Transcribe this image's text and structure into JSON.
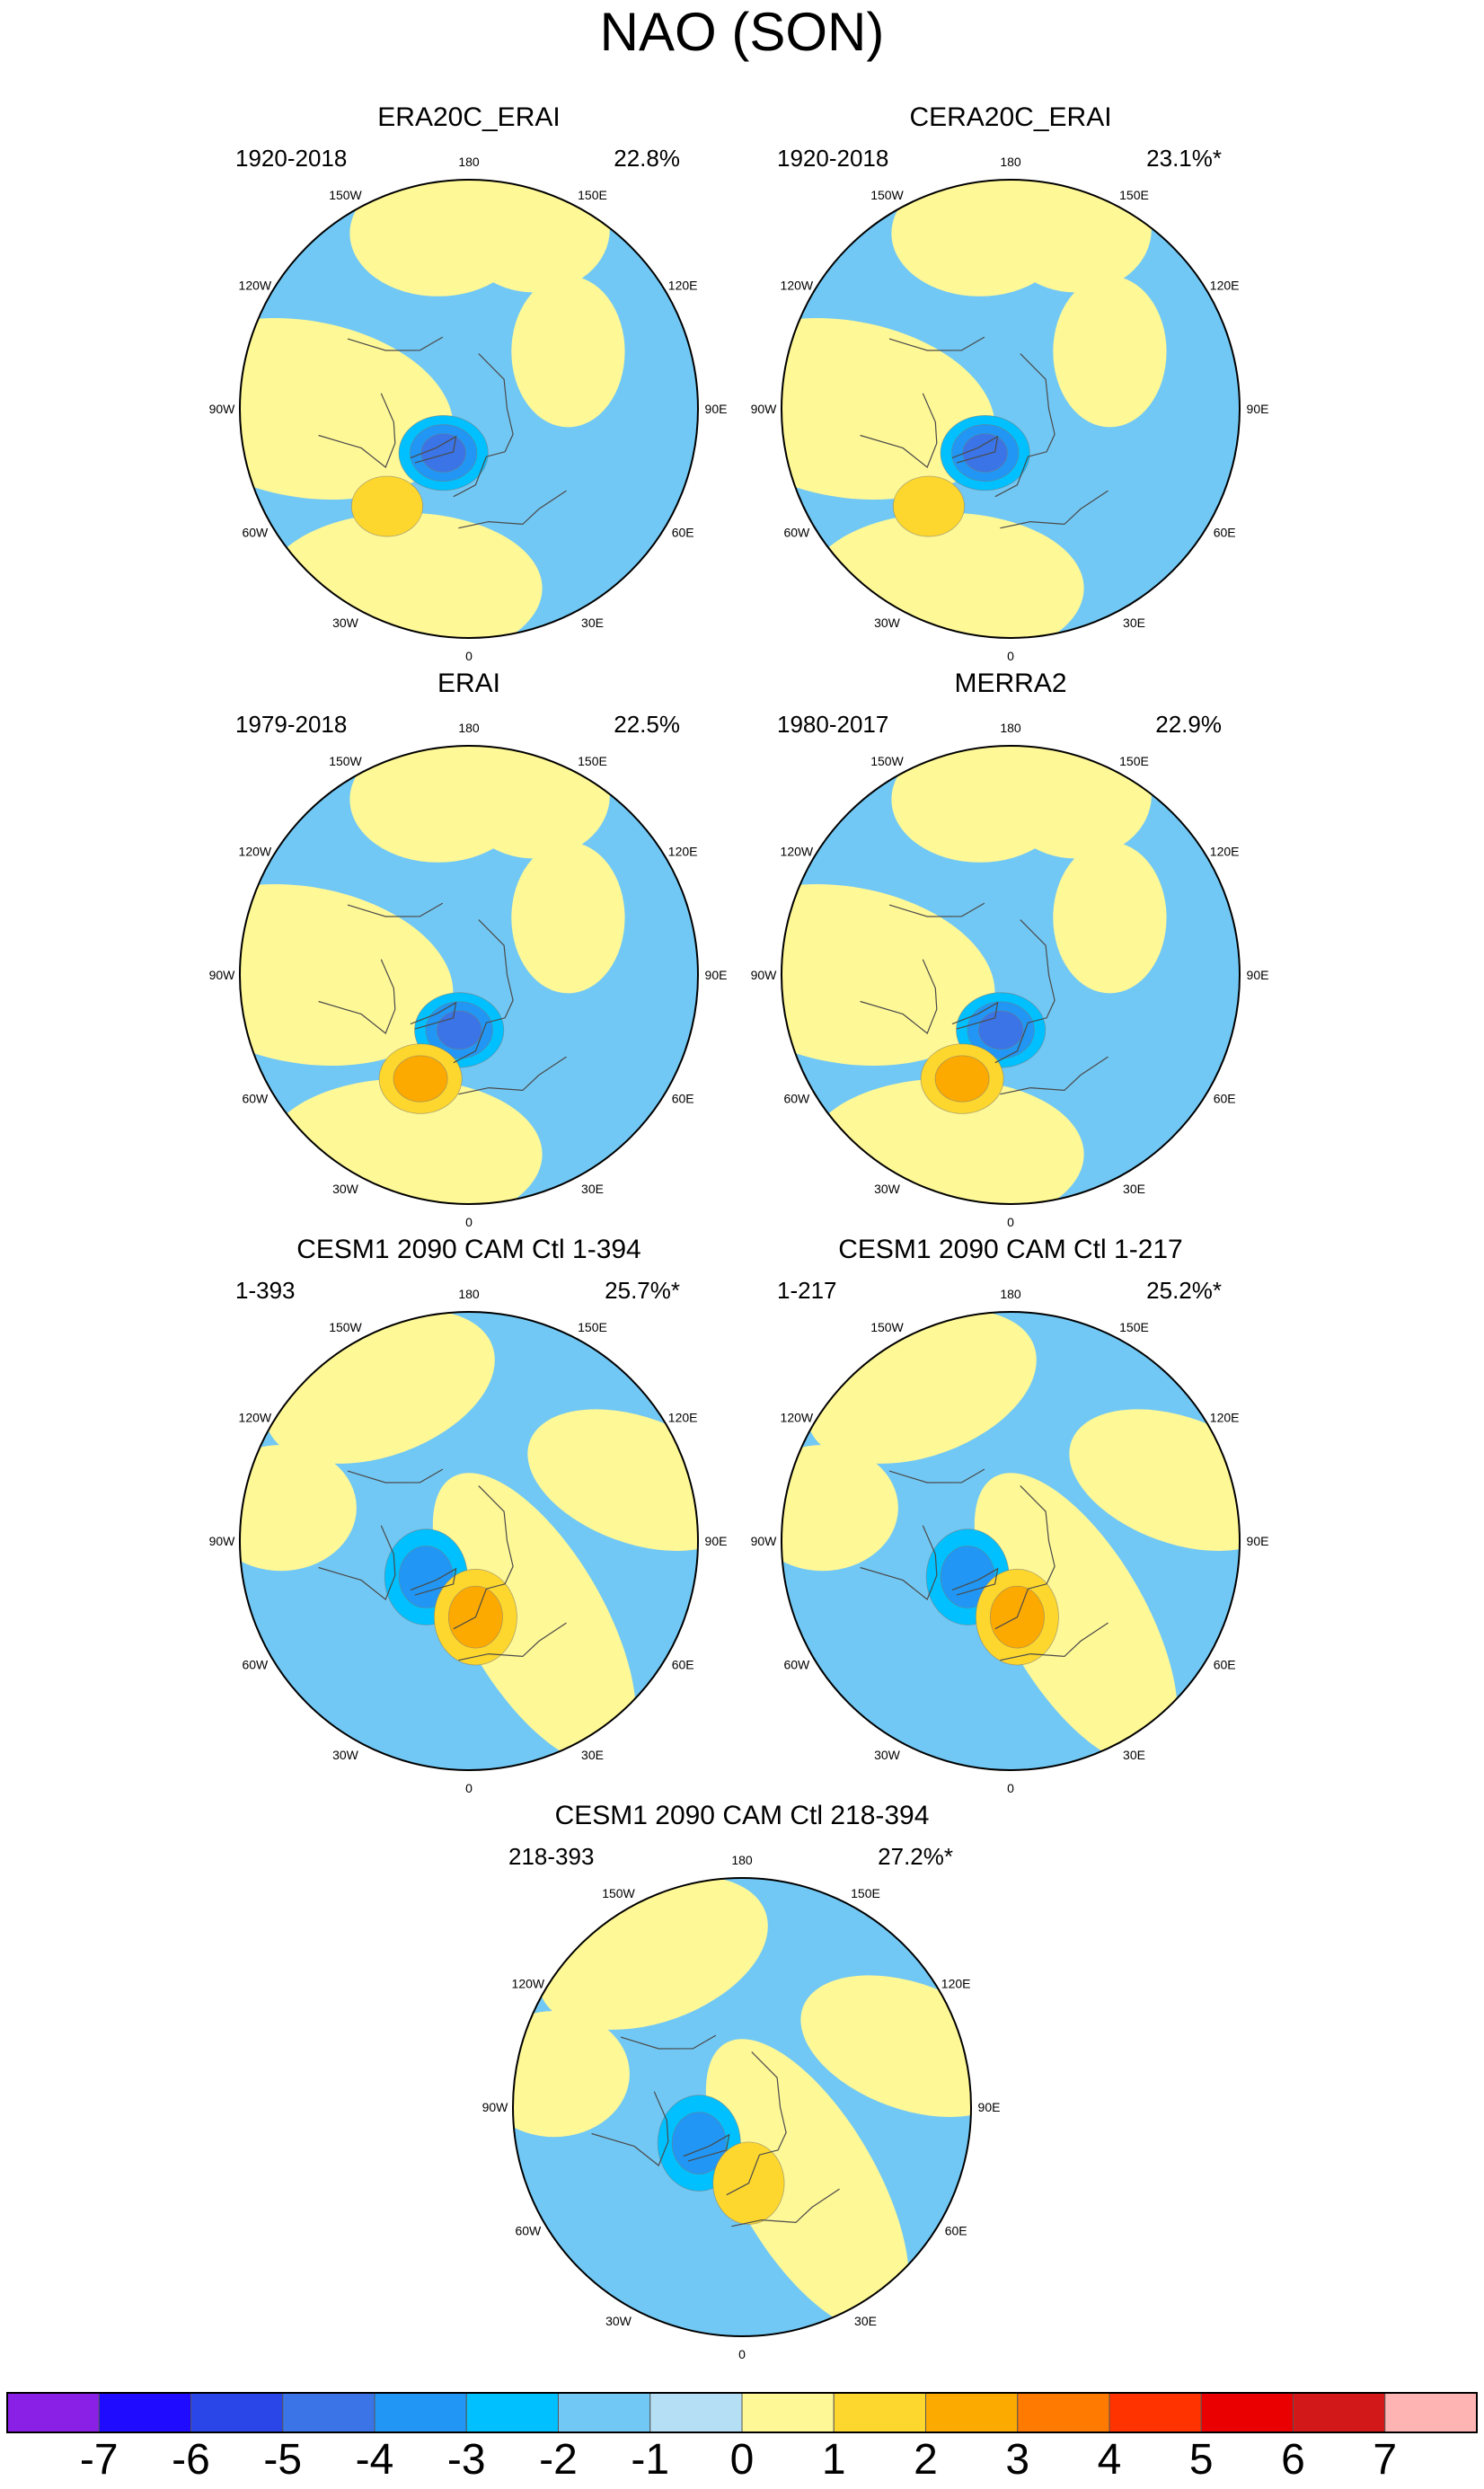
{
  "chart_data": {
    "type": "heatmap",
    "title": "NAO (SON)",
    "projection": "north-polar-stereographic",
    "longitude_labels": [
      "180",
      "150E",
      "120E",
      "90E",
      "60E",
      "30E",
      "0",
      "30W",
      "60W",
      "90W",
      "120W",
      "150W"
    ],
    "panels": [
      {
        "name": "era20c-erai",
        "title": "ERA20C_ERAI",
        "period": "1920-2018",
        "variance": "22.8%",
        "significant": false,
        "negative_center_max": -4,
        "positive_center_max": 2,
        "centers": [
          {
            "sign": "negative",
            "lon": -30,
            "lat": 70,
            "peak": -4
          },
          {
            "sign": "positive",
            "lon": -40,
            "lat": 40,
            "peak": 2
          }
        ]
      },
      {
        "name": "cera20c-erai",
        "title": "CERA20C_ERAI",
        "period": "1920-2018",
        "variance": "23.1%*",
        "significant": true,
        "negative_center_max": -4,
        "positive_center_max": 2,
        "centers": [
          {
            "sign": "negative",
            "lon": -30,
            "lat": 70,
            "peak": -4
          },
          {
            "sign": "positive",
            "lon": -40,
            "lat": 40,
            "peak": 2
          }
        ]
      },
      {
        "name": "erai",
        "title": "ERAI",
        "period": "1979-2018",
        "variance": "22.5%",
        "significant": false,
        "negative_center_max": -4,
        "positive_center_max": 3,
        "centers": [
          {
            "sign": "negative",
            "lon": -10,
            "lat": 68,
            "peak": -4
          },
          {
            "sign": "positive",
            "lon": -25,
            "lat": 45,
            "peak": 3
          }
        ]
      },
      {
        "name": "merra2",
        "title": "MERRA2",
        "period": "1980-2017",
        "variance": "22.9%",
        "significant": false,
        "negative_center_max": -4,
        "positive_center_max": 3,
        "centers": [
          {
            "sign": "negative",
            "lon": -10,
            "lat": 68,
            "peak": -4
          },
          {
            "sign": "positive",
            "lon": -25,
            "lat": 45,
            "peak": 3
          }
        ]
      },
      {
        "name": "cesm1-ctl-1-394",
        "title": "CESM1 2090 CAM Ctl 1-394",
        "period": "1-393",
        "variance": "25.7%*",
        "significant": true,
        "negative_center_max": -3,
        "positive_center_max": 3,
        "centers": [
          {
            "sign": "negative",
            "lon": -50,
            "lat": 68,
            "peak": -3
          },
          {
            "sign": "positive",
            "lon": 5,
            "lat": 60,
            "peak": 3
          }
        ]
      },
      {
        "name": "cesm1-ctl-1-217",
        "title": "CESM1 2090 CAM Ctl 1-217",
        "period": "1-217",
        "variance": "25.2%*",
        "significant": true,
        "negative_center_max": -3,
        "positive_center_max": 3,
        "centers": [
          {
            "sign": "negative",
            "lon": -50,
            "lat": 68,
            "peak": -3
          },
          {
            "sign": "positive",
            "lon": 5,
            "lat": 60,
            "peak": 3
          }
        ]
      },
      {
        "name": "cesm1-ctl-218-394",
        "title": "CESM1 2090 CAM Ctl 218-394",
        "period": "218-393",
        "variance": "27.2%*",
        "significant": true,
        "negative_center_max": -3,
        "positive_center_max": 2,
        "centers": [
          {
            "sign": "negative",
            "lon": -50,
            "lat": 68,
            "peak": -3
          },
          {
            "sign": "positive",
            "lon": 5,
            "lat": 60,
            "peak": 2
          }
        ]
      }
    ],
    "colorbar": {
      "labels": [
        "-7",
        "-6",
        "-5",
        "-4",
        "-3",
        "-2",
        "-1",
        "0",
        "1",
        "2",
        "3",
        "4",
        "5",
        "6",
        "7"
      ],
      "colors": [
        "#8a1fe6",
        "#1f0bff",
        "#2b46e8",
        "#3b74e6",
        "#2196f4",
        "#00c0ff",
        "#72c8f4",
        "#b4dff4",
        "#fff897",
        "#fdd72e",
        "#fdaa00",
        "#ff7a00",
        "#ff3300",
        "#ea0000",
        "#d21818",
        "#ffb4b4"
      ]
    }
  }
}
